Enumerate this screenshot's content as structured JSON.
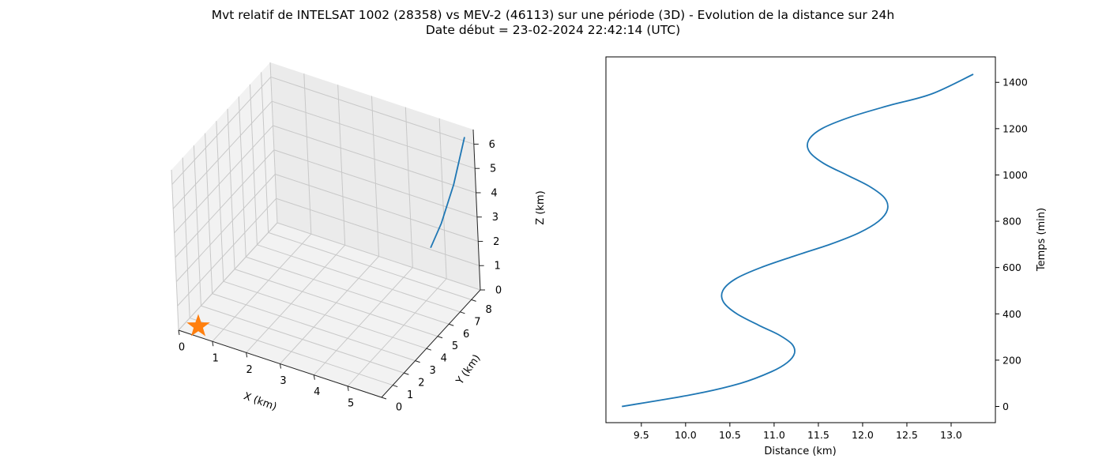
{
  "figure": {
    "title_line1": "Mvt relatif de INTELSAT 1002 (28358) vs MEV-2 (46113) sur une période (3D) - Evolution de la distance sur 24h",
    "title_line2": "Date début = 23-02-2024 22:42:14 (UTC)"
  },
  "chart_data": [
    {
      "type": "line3d",
      "xlabel": "X (km)",
      "ylabel": "Y (km)",
      "zlabel": "Z (km)",
      "x_ticks": [
        "0",
        "1",
        "2",
        "3",
        "4",
        "5"
      ],
      "y_ticks": [
        "0",
        "1",
        "2",
        "3",
        "4",
        "5",
        "6",
        "7",
        "8"
      ],
      "z_ticks": [
        "0",
        "1",
        "2",
        "3",
        "4",
        "5",
        "6"
      ],
      "grid": true,
      "series": [
        {
          "color": "#1f77b4",
          "points": [
            [
              5.8,
              8.6,
              6.3
            ],
            [
              5.8,
              7.5,
              4.9
            ],
            [
              5.8,
              6.3,
              3.9
            ],
            [
              5.8,
              5.3,
              3.4
            ]
          ]
        }
      ],
      "marker": {
        "shape": "star",
        "color": "#ff7f0e",
        "point": [
          0,
          0,
          0
        ]
      }
    },
    {
      "type": "line",
      "xlabel": "Distance (km)",
      "ylabel": "Temps (min)",
      "y_axis_side": "right",
      "xlim": [
        9.1,
        13.5
      ],
      "ylim": [
        -70,
        1510
      ],
      "x_ticks": [
        9.5,
        10.0,
        10.5,
        11.0,
        11.5,
        12.0,
        12.5,
        13.0
      ],
      "x_tick_labels": [
        "9.5",
        "10.0",
        "10.5",
        "11.0",
        "11.5",
        "12.0",
        "12.5",
        "13.0"
      ],
      "y_ticks": [
        0,
        200,
        400,
        600,
        800,
        1000,
        1200,
        1400
      ],
      "y_tick_labels": [
        "0",
        "200",
        "400",
        "600",
        "800",
        "1000",
        "1200",
        "1400"
      ],
      "series": [
        {
          "color": "#1f77b4",
          "x": [
            9.28,
            10.06,
            10.62,
            10.97,
            11.15,
            11.23,
            11.2,
            11.05,
            10.83,
            10.58,
            10.43,
            10.42,
            10.56,
            10.85,
            11.23,
            11.63,
            11.96,
            12.18,
            12.28,
            12.25,
            12.08,
            11.82,
            11.56,
            11.4,
            11.39,
            11.54,
            11.86,
            12.3,
            12.78,
            13.25
          ],
          "y": [
            0,
            50,
            100,
            150,
            190,
            230,
            270,
            310,
            350,
            400,
            450,
            500,
            550,
            600,
            650,
            700,
            750,
            800,
            850,
            900,
            950,
            1000,
            1050,
            1100,
            1150,
            1200,
            1250,
            1300,
            1350,
            1435
          ]
        }
      ]
    }
  ]
}
